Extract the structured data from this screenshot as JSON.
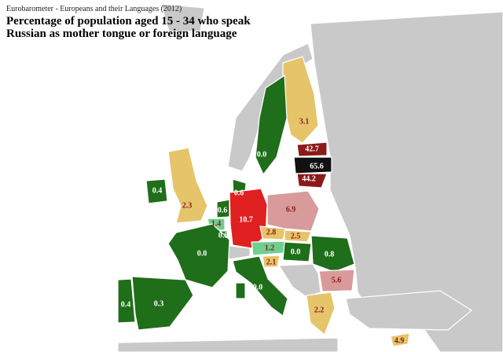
{
  "header": {
    "source": "Eurobarometer - Europeans and their Languages (2012)",
    "title_lines": [
      "Percentage of population aged 15 - 34 who speak",
      "Russian as mother tongue or foreign language"
    ]
  },
  "regions": [
    {
      "label": "3.1",
      "color": "#e6c46a"
    },
    {
      "label": "0.0",
      "color": "#1f6e1a"
    },
    {
      "label": "42.7",
      "color": "#8b1a1a"
    },
    {
      "label": "65.6",
      "color": "#111111"
    },
    {
      "label": "44.2",
      "color": "#8b1a1a"
    },
    {
      "label": "0.4",
      "color": "#1f6e1a"
    },
    {
      "label": "2.3",
      "color": "#e6c46a"
    },
    {
      "label": "0.6",
      "color": "#1f6e1a"
    },
    {
      "label": "0.6",
      "color": "#1f6e1a"
    },
    {
      "label": "1.4",
      "color": "#6fcf8f"
    },
    {
      "label": "0.8",
      "color": "#1f6e1a"
    },
    {
      "label": "10.7",
      "color": "#e02020"
    },
    {
      "label": "6.9",
      "color": "#d89a9a"
    },
    {
      "label": "2.8",
      "color": "#e6c46a"
    },
    {
      "label": "2.5",
      "color": "#e6c46a"
    },
    {
      "label": "1.2",
      "color": "#6fcf8f"
    },
    {
      "label": "2.1",
      "color": "#e6c46a"
    },
    {
      "label": "0.0",
      "color": "#1f6e1a"
    },
    {
      "label": "0.8",
      "color": "#1f6e1a"
    },
    {
      "label": "5.6",
      "color": "#d89a9a"
    },
    {
      "label": "2.2",
      "color": "#e6c46a"
    },
    {
      "label": "0.0",
      "color": "#1f6e1a"
    },
    {
      "label": "0.0",
      "color": "#1f6e1a"
    },
    {
      "label": "0.3",
      "color": "#1f6e1a"
    },
    {
      "label": "0.4",
      "color": "#1f6e1a"
    },
    {
      "label": "4.9",
      "color": "#e6c46a"
    }
  ]
}
